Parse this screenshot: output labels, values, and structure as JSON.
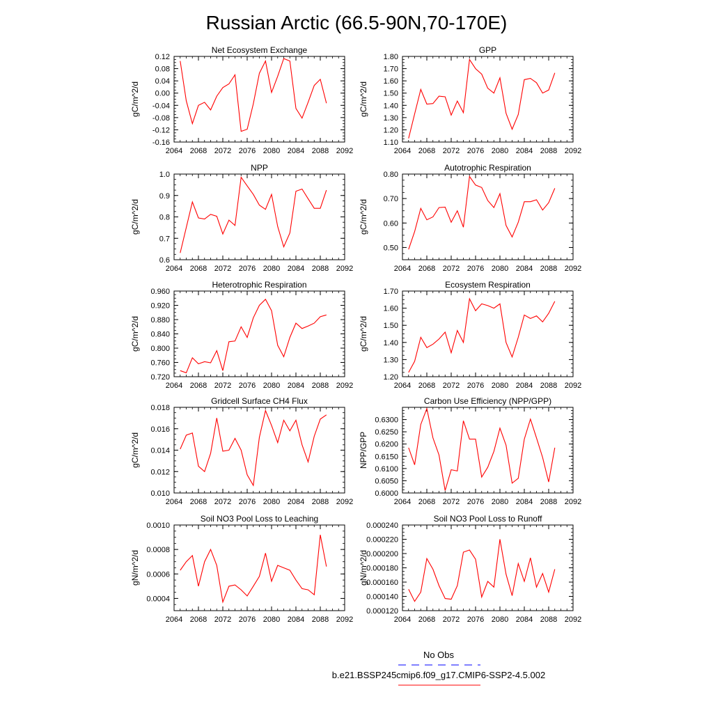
{
  "page_title": "Russian Arctic (66.5-90N,70-170E)",
  "legend": {
    "entries": [
      {
        "label": "No Obs",
        "color": "#0000ff",
        "style": "dashed"
      },
      {
        "label": "b.e21.BSSP245cmip6.f09_g17.CMIP6-SSP2-4.5.002",
        "color": "#ff0000",
        "style": "solid"
      }
    ]
  },
  "colors": {
    "series": "#ff0000",
    "obs": "#0000ff",
    "axis": "#000000"
  },
  "chart_data": [
    {
      "type": "line",
      "title": "Net Ecosystem Exchange",
      "xlabel": "",
      "ylabel": "gC/m^2/d",
      "xlim": [
        2064,
        2092
      ],
      "ylim": [
        -0.16,
        0.12
      ],
      "xticks": [
        "2064",
        "2068",
        "2072",
        "2076",
        "2080",
        "2084",
        "2088",
        "2092"
      ],
      "yticks": [
        "-0.16",
        "-0.12",
        "-0.08",
        "-0.04",
        "0.00",
        "0.04",
        "0.08",
        "0.12"
      ],
      "x": [
        2065,
        2066,
        2067,
        2068,
        2069,
        2070,
        2071,
        2072,
        2073,
        2074,
        2075,
        2076,
        2077,
        2078,
        2079,
        2080,
        2081,
        2082,
        2083,
        2084,
        2085,
        2086,
        2087,
        2088,
        2089
      ],
      "values": [
        0.105,
        -0.025,
        -0.1,
        -0.04,
        -0.03,
        -0.055,
        -0.01,
        0.018,
        0.03,
        0.06,
        -0.125,
        -0.118,
        -0.035,
        0.065,
        0.105,
        0.002,
        0.055,
        0.113,
        0.105,
        -0.05,
        -0.082,
        -0.03,
        0.025,
        0.045,
        -0.033
      ],
      "legend": "none",
      "grid": false
    },
    {
      "type": "line",
      "title": "GPP",
      "xlabel": "",
      "ylabel": "gC/m^2/d",
      "xlim": [
        2064,
        2092
      ],
      "ylim": [
        1.1,
        1.8
      ],
      "xticks": [
        "2064",
        "2068",
        "2072",
        "2076",
        "2080",
        "2084",
        "2088",
        "2092"
      ],
      "yticks": [
        "1.10",
        "1.20",
        "1.30",
        "1.40",
        "1.50",
        "1.60",
        "1.70",
        "1.80"
      ],
      "x": [
        2065,
        2066,
        2067,
        2068,
        2069,
        2070,
        2071,
        2072,
        2073,
        2074,
        2075,
        2076,
        2077,
        2078,
        2079,
        2080,
        2081,
        2082,
        2083,
        2084,
        2085,
        2086,
        2087,
        2088,
        2089
      ],
      "values": [
        1.13,
        1.33,
        1.53,
        1.41,
        1.415,
        1.475,
        1.47,
        1.32,
        1.435,
        1.34,
        1.775,
        1.7,
        1.655,
        1.54,
        1.5,
        1.625,
        1.335,
        1.205,
        1.325,
        1.61,
        1.62,
        1.585,
        1.5,
        1.525,
        1.665
      ],
      "legend": "none",
      "grid": false
    },
    {
      "type": "line",
      "title": "NPP",
      "xlabel": "",
      "ylabel": "gC/m^2/d",
      "xlim": [
        2064,
        2092
      ],
      "ylim": [
        0.6,
        1.0
      ],
      "xticks": [
        "2064",
        "2068",
        "2072",
        "2076",
        "2080",
        "2084",
        "2088",
        "2092"
      ],
      "yticks": [
        "0.6",
        "0.7",
        "0.8",
        "0.9",
        "1.0"
      ],
      "x": [
        2065,
        2066,
        2067,
        2068,
        2069,
        2070,
        2071,
        2072,
        2073,
        2074,
        2075,
        2076,
        2077,
        2078,
        2079,
        2080,
        2081,
        2082,
        2083,
        2084,
        2085,
        2086,
        2087,
        2088,
        2089
      ],
      "values": [
        0.632,
        0.75,
        0.87,
        0.795,
        0.79,
        0.812,
        0.803,
        0.72,
        0.785,
        0.76,
        0.985,
        0.945,
        0.905,
        0.855,
        0.835,
        0.905,
        0.755,
        0.66,
        0.725,
        0.92,
        0.93,
        0.885,
        0.84,
        0.84,
        0.925
      ],
      "legend": "none",
      "grid": false
    },
    {
      "type": "line",
      "title": "Autotrophic Respiration",
      "xlabel": "",
      "ylabel": "gC/m^2/d",
      "xlim": [
        2064,
        2092
      ],
      "ylim": [
        0.45,
        0.8
      ],
      "xticks": [
        "2064",
        "2068",
        "2072",
        "2076",
        "2080",
        "2084",
        "2088",
        "2092"
      ],
      "yticks": [
        "0.50",
        "0.60",
        "0.70",
        "0.80"
      ],
      "x": [
        2065,
        2066,
        2067,
        2068,
        2069,
        2070,
        2071,
        2072,
        2073,
        2074,
        2075,
        2076,
        2077,
        2078,
        2079,
        2080,
        2081,
        2082,
        2083,
        2084,
        2085,
        2086,
        2087,
        2088,
        2089
      ],
      "values": [
        0.492,
        0.565,
        0.66,
        0.613,
        0.625,
        0.663,
        0.665,
        0.603,
        0.65,
        0.583,
        0.79,
        0.755,
        0.745,
        0.692,
        0.663,
        0.72,
        0.59,
        0.543,
        0.603,
        0.687,
        0.687,
        0.695,
        0.653,
        0.683,
        0.742
      ],
      "legend": "none",
      "grid": false
    },
    {
      "type": "line",
      "title": "Heterotrophic Respiration",
      "xlabel": "",
      "ylabel": "gC/m^2/d",
      "xlim": [
        2064,
        2092
      ],
      "ylim": [
        0.72,
        0.96
      ],
      "xticks": [
        "2064",
        "2068",
        "2072",
        "2076",
        "2080",
        "2084",
        "2088",
        "2092"
      ],
      "yticks": [
        "0.720",
        "0.760",
        "0.800",
        "0.840",
        "0.880",
        "0.920",
        "0.960"
      ],
      "x": [
        2065,
        2066,
        2067,
        2068,
        2069,
        2070,
        2071,
        2072,
        2073,
        2074,
        2075,
        2076,
        2077,
        2078,
        2079,
        2080,
        2081,
        2082,
        2083,
        2084,
        2085,
        2086,
        2087,
        2088,
        2089
      ],
      "values": [
        0.737,
        0.731,
        0.773,
        0.756,
        0.762,
        0.759,
        0.793,
        0.737,
        0.818,
        0.82,
        0.86,
        0.83,
        0.885,
        0.92,
        0.937,
        0.905,
        0.808,
        0.776,
        0.83,
        0.87,
        0.855,
        0.862,
        0.87,
        0.888,
        0.893
      ],
      "legend": "none",
      "grid": false
    },
    {
      "type": "line",
      "title": "Ecosystem Respiration",
      "xlabel": "",
      "ylabel": "gC/m^2/d",
      "xlim": [
        2064,
        2092
      ],
      "ylim": [
        1.2,
        1.7
      ],
      "xticks": [
        "2064",
        "2068",
        "2072",
        "2076",
        "2080",
        "2084",
        "2088",
        "2092"
      ],
      "yticks": [
        "1.20",
        "1.30",
        "1.40",
        "1.50",
        "1.60",
        "1.70"
      ],
      "x": [
        2065,
        2066,
        2067,
        2068,
        2069,
        2070,
        2071,
        2072,
        2073,
        2074,
        2075,
        2076,
        2077,
        2078,
        2079,
        2080,
        2081,
        2082,
        2083,
        2084,
        2085,
        2086,
        2087,
        2088,
        2089
      ],
      "values": [
        1.225,
        1.29,
        1.43,
        1.37,
        1.39,
        1.42,
        1.46,
        1.34,
        1.47,
        1.4,
        1.655,
        1.585,
        1.625,
        1.615,
        1.6,
        1.625,
        1.4,
        1.315,
        1.43,
        1.56,
        1.54,
        1.555,
        1.52,
        1.57,
        1.64
      ],
      "legend": "none",
      "grid": false
    },
    {
      "type": "line",
      "title": "Gridcell Surface CH4 Flux",
      "xlabel": "",
      "ylabel": "gC/m^2/d",
      "xlim": [
        2064,
        2092
      ],
      "ylim": [
        0.01,
        0.018
      ],
      "xticks": [
        "2064",
        "2068",
        "2072",
        "2076",
        "2080",
        "2084",
        "2088",
        "2092"
      ],
      "yticks": [
        "0.010",
        "0.012",
        "0.014",
        "0.016",
        "0.018"
      ],
      "x": [
        2065,
        2066,
        2067,
        2068,
        2069,
        2070,
        2071,
        2072,
        2073,
        2074,
        2075,
        2076,
        2077,
        2078,
        2079,
        2080,
        2081,
        2082,
        2083,
        2084,
        2085,
        2086,
        2087,
        2088,
        2089
      ],
      "values": [
        0.0141,
        0.0154,
        0.0156,
        0.0125,
        0.012,
        0.0137,
        0.017,
        0.0139,
        0.014,
        0.0151,
        0.014,
        0.0117,
        0.0107,
        0.0152,
        0.0177,
        0.0163,
        0.0147,
        0.0168,
        0.0158,
        0.0168,
        0.0145,
        0.0129,
        0.0153,
        0.0169,
        0.0173
      ],
      "legend": "none",
      "grid": false
    },
    {
      "type": "line",
      "title": "Carbon Use Efficiency (NPP/GPP)",
      "xlabel": "",
      "ylabel": "NPP/GPP",
      "xlim": [
        2064,
        2092
      ],
      "ylim": [
        0.6,
        0.635
      ],
      "xticks": [
        "2064",
        "2068",
        "2072",
        "2076",
        "2080",
        "2084",
        "2088",
        "2092"
      ],
      "yticks": [
        "0.6000",
        "0.6050",
        "0.6100",
        "0.6150",
        "0.6200",
        "0.6250",
        "0.6300"
      ],
      "x": [
        2065,
        2066,
        2067,
        2068,
        2069,
        2070,
        2071,
        2072,
        2073,
        2074,
        2075,
        2076,
        2077,
        2078,
        2079,
        2080,
        2081,
        2082,
        2083,
        2084,
        2085,
        2086,
        2087,
        2088,
        2089
      ],
      "values": [
        0.6185,
        0.6115,
        0.628,
        0.6345,
        0.6225,
        0.6155,
        0.601,
        0.6095,
        0.609,
        0.6295,
        0.622,
        0.622,
        0.6065,
        0.6105,
        0.617,
        0.6265,
        0.6195,
        0.604,
        0.606,
        0.622,
        0.6302,
        0.6225,
        0.6145,
        0.6045,
        0.6185
      ],
      "legend": "none",
      "grid": false
    },
    {
      "type": "line",
      "title": "Soil NO3 Pool Loss to Leaching",
      "xlabel": "",
      "ylabel": "gN/m^2/d",
      "xlim": [
        2064,
        2092
      ],
      "ylim": [
        0.0003,
        0.001
      ],
      "xticks": [
        "2064",
        "2068",
        "2072",
        "2076",
        "2080",
        "2084",
        "2088",
        "2092"
      ],
      "yticks": [
        "0.0004",
        "0.0006",
        "0.0008",
        "0.0010"
      ],
      "x": [
        2065,
        2066,
        2067,
        2068,
        2069,
        2070,
        2071,
        2072,
        2073,
        2074,
        2075,
        2076,
        2077,
        2078,
        2079,
        2080,
        2081,
        2082,
        2083,
        2084,
        2085,
        2086,
        2087,
        2088,
        2089
      ],
      "values": [
        0.00063,
        0.0007,
        0.00075,
        0.0005,
        0.0007,
        0.0008,
        0.00067,
        0.00037,
        0.0005,
        0.00051,
        0.00047,
        0.00042,
        0.0005,
        0.00058,
        0.00077,
        0.00054,
        0.00067,
        0.00065,
        0.00063,
        0.00055,
        0.00048,
        0.00047,
        0.00043,
        0.00092,
        0.00066
      ],
      "legend": "none",
      "grid": false
    },
    {
      "type": "line",
      "title": "Soil NO3 Pool Loss to Runoff",
      "xlabel": "",
      "ylabel": "gN/m^2/d",
      "xlim": [
        2064,
        2092
      ],
      "ylim": [
        0.00012,
        0.00024
      ],
      "xticks": [
        "2064",
        "2068",
        "2072",
        "2076",
        "2080",
        "2084",
        "2088",
        "2092"
      ],
      "yticks": [
        "0.000120",
        "0.000140",
        "0.000160",
        "0.000180",
        "0.000200",
        "0.000220",
        "0.000240"
      ],
      "x": [
        2065,
        2066,
        2067,
        2068,
        2069,
        2070,
        2071,
        2072,
        2073,
        2074,
        2075,
        2076,
        2077,
        2078,
        2079,
        2080,
        2081,
        2082,
        2083,
        2084,
        2085,
        2086,
        2087,
        2088,
        2089
      ],
      "values": [
        0.00015,
        0.000133,
        0.000146,
        0.000193,
        0.000178,
        0.000155,
        0.000137,
        0.000136,
        0.000155,
        0.000202,
        0.000205,
        0.000192,
        0.000139,
        0.000161,
        0.000153,
        0.00022,
        0.000171,
        0.000141,
        0.000186,
        0.000161,
        0.000194,
        0.000153,
        0.000172,
        0.000146,
        0.000178
      ],
      "legend": "none",
      "grid": false
    }
  ]
}
